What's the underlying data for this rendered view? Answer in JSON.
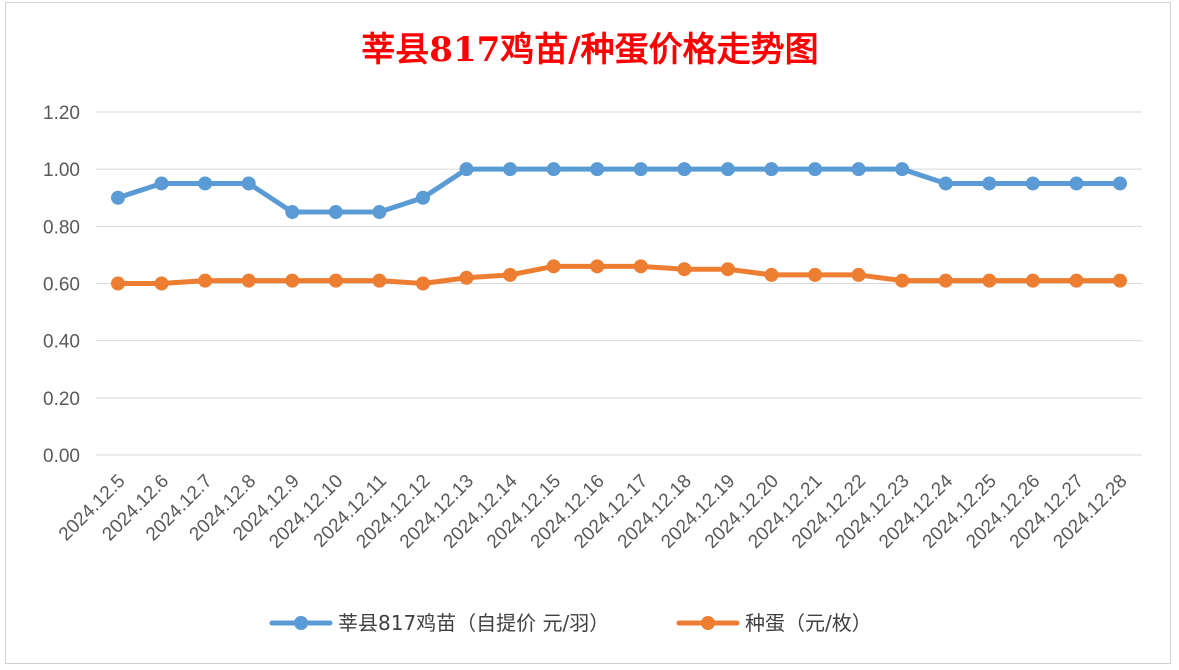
{
  "chart_data": {
    "type": "line",
    "title": "莘县817鸡苗/种蛋价格走势图",
    "xlabel": "",
    "ylabel": "",
    "ylim": [
      0,
      1.2
    ],
    "yticks": [
      "0.00",
      "0.20",
      "0.40",
      "0.60",
      "0.80",
      "1.00",
      "1.20"
    ],
    "grid": true,
    "legend_position": "bottom",
    "categories": [
      "2024.12.5",
      "2024.12.6",
      "2024.12.7",
      "2024.12.8",
      "2024.12.9",
      "2024.12.10",
      "2024.12.11",
      "2024.12.12",
      "2024.12.13",
      "2024.12.14",
      "2024.12.15",
      "2024.12.16",
      "2024.12.17",
      "2024.12.18",
      "2024.12.19",
      "2024.12.20",
      "2024.12.21",
      "2024.12.22",
      "2024.12.23",
      "2024.12.24",
      "2024.12.25",
      "2024.12.26",
      "2024.12.27",
      "2024.12.28"
    ],
    "series": [
      {
        "name": "莘县817鸡苗（自提价 元/羽）",
        "color": "#5b9bd5",
        "values": [
          0.9,
          0.95,
          0.95,
          0.95,
          0.85,
          0.85,
          0.85,
          0.9,
          1.0,
          1.0,
          1.0,
          1.0,
          1.0,
          1.0,
          1.0,
          1.0,
          1.0,
          1.0,
          1.0,
          0.95,
          0.95,
          0.95,
          0.95,
          0.95
        ]
      },
      {
        "name": "种蛋（元/枚）",
        "color": "#ed7d31",
        "values": [
          0.6,
          0.6,
          0.61,
          0.61,
          0.61,
          0.61,
          0.61,
          0.6,
          0.62,
          0.63,
          0.66,
          0.66,
          0.66,
          0.65,
          0.65,
          0.63,
          0.63,
          0.63,
          0.61,
          0.61,
          0.61,
          0.61,
          0.61,
          0.61
        ]
      }
    ]
  }
}
